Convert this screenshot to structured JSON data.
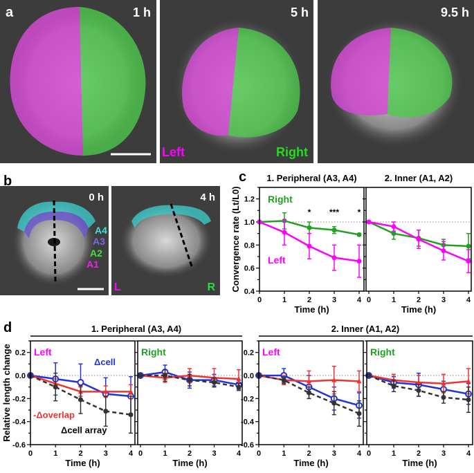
{
  "panel_a": {
    "label": "a",
    "images": [
      {
        "time": "1 h",
        "left_label": "Left",
        "right_label": "Right"
      },
      {
        "time": "5 h"
      },
      {
        "time": "9.5 h"
      }
    ]
  },
  "panel_b": {
    "label": "b",
    "images": [
      {
        "time": "0 h",
        "regions": [
          "A4",
          "A3",
          "A2",
          "A1"
        ]
      },
      {
        "time": "4 h",
        "left_label": "L",
        "right_label": "R"
      }
    ]
  },
  "panel_c": {
    "label": "c",
    "ylabel": "Convergence rate (Lt/L0)"
  },
  "panel_d": {
    "label": "d",
    "ylabel": "Relative length change",
    "group_titles": [
      "1. Peripheral (A3, A4)",
      "2. Inner (A1, A2)"
    ]
  },
  "colors": {
    "left": "#ff00ff",
    "right": "#22a022",
    "cell": "#2233dd",
    "overlap": "#ee3333",
    "cell_array": "#333333"
  },
  "chart_data": [
    {
      "type": "line",
      "panel": "c",
      "title": "1. Peripheral (A3, A4)",
      "xlabel": "Time (h)",
      "ylabel": "Convergence rate (Lt/L0)",
      "x": [
        0,
        1,
        2,
        3,
        4
      ],
      "ylim": [
        0.4,
        1.3
      ],
      "yticks": [
        0.4,
        0.6,
        0.8,
        1.0,
        1.2
      ],
      "reference_line": 1.0,
      "legend_labels": [
        "Right",
        "Left"
      ],
      "significance": [
        {
          "x": 2,
          "label": "*"
        },
        {
          "x": 3,
          "label": "***"
        },
        {
          "x": 4,
          "label": "*"
        }
      ],
      "series": [
        {
          "name": "Right",
          "color": "#22a022",
          "marker": "filled-circle",
          "values": [
            1.0,
            1.01,
            0.95,
            0.93,
            0.89
          ],
          "errors": [
            0,
            0.07,
            0.05,
            0.03,
            0.01
          ]
        },
        {
          "name": "Left",
          "color": "#ff00ff",
          "marker": "filled-circle",
          "values": [
            1.0,
            0.91,
            0.79,
            0.69,
            0.66
          ],
          "errors": [
            0,
            0.11,
            0.11,
            0.11,
            0.14
          ]
        }
      ]
    },
    {
      "type": "line",
      "panel": "c",
      "title": "2. Inner (A1, A2)",
      "xlabel": "Time (h)",
      "x": [
        0,
        1,
        2,
        3,
        4
      ],
      "ylim": [
        0.4,
        1.3
      ],
      "yticks": [
        0.4,
        0.6,
        0.8,
        1.0,
        1.2
      ],
      "reference_line": 1.0,
      "series": [
        {
          "name": "Right",
          "color": "#22a022",
          "marker": "filled-circle",
          "values": [
            1.0,
            0.9,
            0.86,
            0.8,
            0.79
          ],
          "errors": [
            0,
            0.05,
            0.07,
            0.05,
            0.11
          ]
        },
        {
          "name": "Left",
          "color": "#ff00ff",
          "marker": "filled-circle",
          "values": [
            1.0,
            0.96,
            0.85,
            0.75,
            0.66
          ],
          "errors": [
            0,
            0.04,
            0.08,
            0.08,
            0.1
          ]
        }
      ]
    },
    {
      "type": "line",
      "panel": "d",
      "group": "1. Peripheral (A3, A4)",
      "side_label": "Left",
      "xlabel": "Time (h)",
      "ylabel": "Relative length change",
      "x": [
        0,
        1,
        2,
        3,
        4
      ],
      "ylim": [
        -0.6,
        0.3
      ],
      "yticks": [
        -0.6,
        -0.4,
        -0.2,
        0.0,
        0.2
      ],
      "reference_line": 0,
      "legend_labels": [
        "Δcell",
        "-Δoverlap",
        "Δcell array"
      ],
      "series": [
        {
          "name": "Δcell",
          "color": "#2233dd",
          "marker": "open-circle",
          "values": [
            0,
            -0.03,
            -0.06,
            -0.16,
            -0.18
          ],
          "errors": [
            0,
            0.14,
            0.16,
            0.14,
            0.17
          ]
        },
        {
          "name": "-Δoverlap",
          "color": "#ee3333",
          "marker": "triangle",
          "values": [
            0,
            -0.07,
            -0.14,
            -0.14,
            -0.14
          ],
          "errors": [
            0,
            0.04,
            0.04,
            0.05,
            0.06
          ]
        },
        {
          "name": "Δcell array",
          "color": "#333333",
          "marker": "filled-circle",
          "dashed": true,
          "values": [
            0,
            -0.1,
            -0.21,
            -0.31,
            -0.34
          ],
          "errors": [
            0,
            0.12,
            0.12,
            0.13,
            0.16
          ]
        }
      ]
    },
    {
      "type": "line",
      "panel": "d",
      "group": "1. Peripheral (A3, A4)",
      "side_label": "Right",
      "xlabel": "Time (h)",
      "x": [
        0,
        1,
        2,
        3,
        4
      ],
      "ylim": [
        -0.6,
        0.3
      ],
      "yticks": [
        -0.6,
        -0.4,
        -0.2,
        0.0,
        0.2
      ],
      "reference_line": 0,
      "series": [
        {
          "name": "Δcell",
          "color": "#2233dd",
          "marker": "open-circle",
          "values": [
            0,
            0.03,
            -0.04,
            -0.04,
            -0.08
          ],
          "errors": [
            0,
            0.06,
            0.07,
            0.05,
            0.04
          ]
        },
        {
          "name": "-Δoverlap",
          "color": "#ee3333",
          "marker": "triangle",
          "values": [
            0,
            -0.02,
            0,
            -0.02,
            -0.03
          ],
          "errors": [
            0,
            0.04,
            0.06,
            0.08,
            0.08
          ]
        },
        {
          "name": "Δcell array",
          "color": "#333333",
          "marker": "filled-circle",
          "dashed": true,
          "values": [
            0,
            0,
            -0.04,
            -0.06,
            -0.1
          ],
          "errors": [
            0,
            0.05,
            0.05,
            0.04,
            0.03
          ]
        }
      ]
    },
    {
      "type": "line",
      "panel": "d",
      "group": "2. Inner (A1, A2)",
      "side_label": "Left",
      "xlabel": "Time (h)",
      "x": [
        0,
        1,
        2,
        3,
        4
      ],
      "ylim": [
        -0.6,
        0.3
      ],
      "yticks": [
        -0.6,
        -0.4,
        -0.2,
        0.0,
        0.2
      ],
      "reference_line": 0,
      "series": [
        {
          "name": "Δcell",
          "color": "#2233dd",
          "marker": "open-circle",
          "values": [
            0,
            0,
            -0.1,
            -0.2,
            -0.26
          ],
          "errors": [
            0,
            0.06,
            0.1,
            0.1,
            0.11
          ]
        },
        {
          "name": "-Δoverlap",
          "color": "#ee3333",
          "marker": "triangle",
          "values": [
            0,
            -0.04,
            -0.05,
            -0.04,
            -0.05
          ],
          "errors": [
            0,
            0.04,
            0.09,
            0.12,
            0.09
          ]
        },
        {
          "name": "Δcell array",
          "color": "#333333",
          "marker": "filled-circle",
          "dashed": true,
          "values": [
            0,
            -0.04,
            -0.15,
            -0.24,
            -0.33
          ],
          "errors": [
            0,
            0.03,
            0.05,
            0.1,
            0.11
          ]
        }
      ]
    },
    {
      "type": "line",
      "panel": "d",
      "group": "2. Inner (A1, A2)",
      "side_label": "Right",
      "xlabel": "Time (h)",
      "x": [
        0,
        1,
        2,
        3,
        4
      ],
      "ylim": [
        -0.6,
        0.3
      ],
      "yticks": [
        -0.6,
        -0.4,
        -0.2,
        0.0,
        0.2
      ],
      "reference_line": 0,
      "series": [
        {
          "name": "Δcell",
          "color": "#2233dd",
          "marker": "open-circle",
          "values": [
            0,
            -0.06,
            -0.08,
            -0.12,
            -0.16
          ],
          "errors": [
            0,
            0.05,
            0.1,
            0.07,
            0.09
          ]
        },
        {
          "name": "-Δoverlap",
          "color": "#ee3333",
          "marker": "triangle",
          "values": [
            0,
            -0.04,
            -0.06,
            -0.07,
            -0.05
          ],
          "errors": [
            0,
            0.05,
            0.06,
            0.08,
            0.11
          ]
        },
        {
          "name": "Δcell array",
          "color": "#333333",
          "marker": "filled-circle",
          "dashed": true,
          "values": [
            0,
            -0.09,
            -0.13,
            -0.19,
            -0.21
          ],
          "errors": [
            0,
            0.05,
            0.05,
            0.05,
            0.11
          ]
        }
      ]
    }
  ]
}
